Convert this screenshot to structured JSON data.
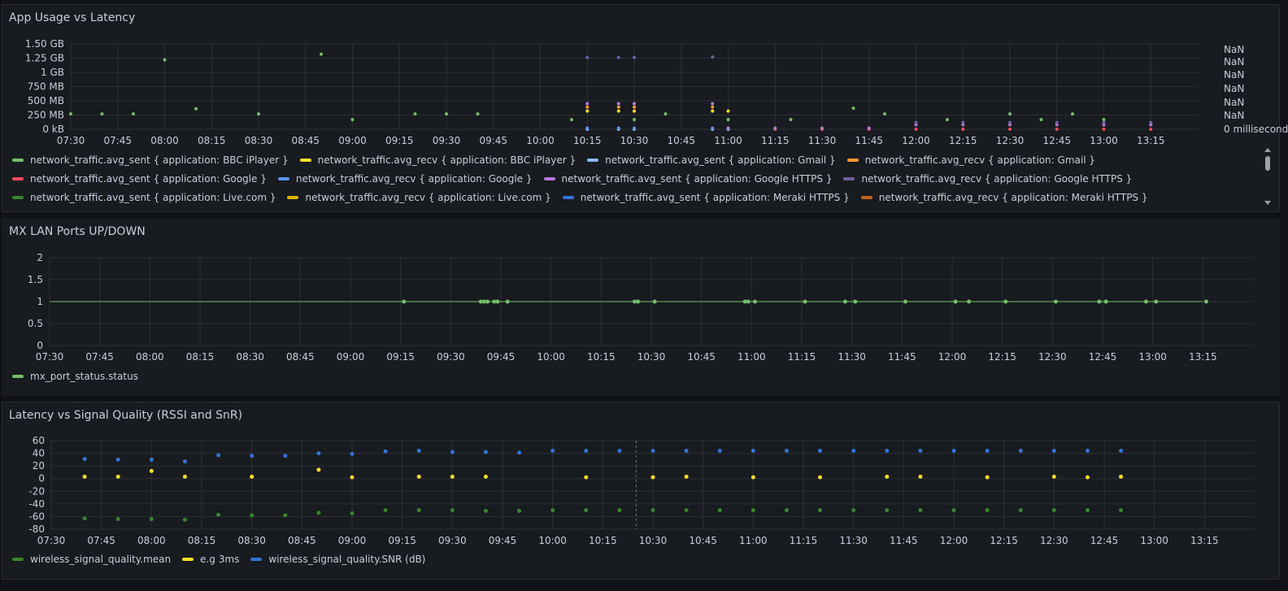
{
  "panels": [
    {
      "title": "App Usage vs Latency",
      "legend": [
        {
          "label": "network_traffic.avg_sent { application: BBC iPlayer }",
          "color": "#73bf69"
        },
        {
          "label": "network_traffic.avg_recv { application: BBC iPlayer }",
          "color": "#fade2a"
        },
        {
          "label": "network_traffic.avg_sent { application: Gmail }",
          "color": "#8ab8ff"
        },
        {
          "label": "network_traffic.avg_recv { application: Gmail }",
          "color": "#ff9830"
        },
        {
          "label": "network_traffic.avg_sent { application: Google }",
          "color": "#f2495c"
        },
        {
          "label": "network_traffic.avg_recv { application: Google }",
          "color": "#5794f2"
        },
        {
          "label": "network_traffic.avg_sent { application: Google HTTPS }",
          "color": "#b877d9"
        },
        {
          "label": "network_traffic.avg_recv { application: Google HTTPS }",
          "color": "#705da0"
        },
        {
          "label": "network_traffic.avg_sent { application: Live.com }",
          "color": "#37872d"
        },
        {
          "label": "network_traffic.avg_recv { application: Live.com }",
          "color": "#e0b400"
        },
        {
          "label": "network_traffic.avg_sent { application: Meraki HTTPS }",
          "color": "#3274d9"
        },
        {
          "label": "network_traffic.avg_recv { application: Meraki HTTPS }",
          "color": "#c4631b"
        }
      ]
    },
    {
      "title": "MX LAN Ports UP/DOWN",
      "legend": [
        {
          "label": "mx_port_status.status",
          "color": "#73bf69"
        }
      ]
    },
    {
      "title": "Latency vs Signal Quality (RSSI and SnR)",
      "legend": [
        {
          "label": "wireless_signal_quality.mean",
          "color": "#37872d"
        },
        {
          "label": "e.g 3ms",
          "color": "#fade2a"
        },
        {
          "label": "wireless_signal_quality.SNR (dB)",
          "color": "#3274d9"
        }
      ]
    }
  ],
  "chart_data": [
    {
      "type": "scatter",
      "title": "App Usage vs Latency",
      "x_tick_labels": [
        "07:30",
        "07:45",
        "08:00",
        "08:15",
        "08:30",
        "08:45",
        "09:00",
        "09:15",
        "09:30",
        "09:45",
        "10:00",
        "10:15",
        "10:30",
        "10:45",
        "11:00",
        "11:15",
        "11:30",
        "11:45",
        "12:00",
        "12:15",
        "12:30",
        "12:45",
        "13:00",
        "13:15"
      ],
      "y_tick_labels": [
        "1.50 GB",
        "1.25 GB",
        "1 GB",
        "750 MB",
        "500 MB",
        "250 MB",
        "0 kB"
      ],
      "y_ticks_mb": [
        1500,
        1250,
        1000,
        750,
        500,
        250,
        0
      ],
      "y2_tick_labels": [
        "NaN",
        "NaN",
        "NaN",
        "NaN",
        "NaN",
        "NaN",
        "0 milliseconds"
      ],
      "ylim_mb": [
        0,
        1500
      ],
      "xlim": [
        "07:30",
        "13:30"
      ],
      "grid": true,
      "series": [
        {
          "name": "network_traffic.avg_sent { application: BBC iPlayer }",
          "color": "#73bf69",
          "points": [
            [
              "07:30",
              270
            ],
            [
              "07:40",
              270
            ],
            [
              "07:50",
              270
            ],
            [
              "08:00",
              1220
            ],
            [
              "08:10",
              360
            ],
            [
              "08:30",
              270
            ],
            [
              "08:50",
              1320
            ],
            [
              "09:00",
              170
            ],
            [
              "09:20",
              270
            ],
            [
              "09:30",
              270
            ],
            [
              "09:40",
              270
            ],
            [
              "10:10",
              170
            ],
            [
              "10:30",
              170
            ],
            [
              "10:40",
              270
            ],
            [
              "11:00",
              170
            ],
            [
              "11:20",
              170
            ],
            [
              "11:40",
              370
            ],
            [
              "11:50",
              270
            ],
            [
              "12:10",
              170
            ],
            [
              "12:30",
              270
            ],
            [
              "12:40",
              170
            ],
            [
              "12:50",
              270
            ],
            [
              "13:00",
              170
            ]
          ]
        },
        {
          "name": "network_traffic.avg_recv { application: BBC iPlayer }",
          "color": "#fade2a",
          "points": [
            [
              "10:15",
              320
            ],
            [
              "10:25",
              320
            ],
            [
              "10:30",
              320
            ],
            [
              "10:55",
              320
            ],
            [
              "11:00",
              320
            ]
          ]
        },
        {
          "name": "network_traffic.avg_sent { application: Gmail }",
          "color": "#8ab8ff",
          "points": [
            [
              "10:15",
              0
            ],
            [
              "10:25",
              0
            ],
            [
              "10:30",
              0
            ],
            [
              "10:55",
              0
            ],
            [
              "11:00",
              0
            ]
          ]
        },
        {
          "name": "network_traffic.avg_recv { application: Gmail }",
          "color": "#ff9830",
          "points": [
            [
              "10:15",
              390
            ],
            [
              "10:25",
              390
            ],
            [
              "10:30",
              390
            ],
            [
              "10:55",
              390
            ]
          ]
        },
        {
          "name": "network_traffic.avg_sent { application: Google }",
          "color": "#f2495c",
          "points": [
            [
              "11:15",
              0
            ],
            [
              "11:30",
              0
            ],
            [
              "11:45",
              0
            ],
            [
              "12:00",
              0
            ],
            [
              "12:15",
              0
            ],
            [
              "12:30",
              0
            ],
            [
              "12:45",
              0
            ],
            [
              "13:00",
              0
            ],
            [
              "13:15",
              0
            ]
          ]
        },
        {
          "name": "network_traffic.avg_recv { application: Google }",
          "color": "#5794f2",
          "points": [
            [
              "10:15",
              20
            ],
            [
              "10:25",
              20
            ],
            [
              "10:30",
              20
            ],
            [
              "10:55",
              20
            ],
            [
              "11:00",
              20
            ]
          ]
        },
        {
          "name": "network_traffic.avg_sent { application: Google HTTPS }",
          "color": "#b877d9",
          "points": [
            [
              "10:15",
              450
            ],
            [
              "10:25",
              450
            ],
            [
              "10:30",
              450
            ],
            [
              "10:55",
              450
            ],
            [
              "11:00",
              20
            ],
            [
              "11:15",
              20
            ],
            [
              "11:30",
              20
            ],
            [
              "11:45",
              20
            ],
            [
              "12:00",
              80
            ],
            [
              "12:15",
              80
            ],
            [
              "12:30",
              80
            ],
            [
              "12:45",
              80
            ],
            [
              "13:00",
              80
            ],
            [
              "13:15",
              80
            ]
          ]
        },
        {
          "name": "network_traffic.avg_recv { application: Google HTTPS }",
          "color": "#705da0",
          "points": [
            [
              "10:15",
              1260
            ],
            [
              "10:25",
              1260
            ],
            [
              "10:30",
              1260
            ],
            [
              "10:55",
              1270
            ],
            [
              "12:00",
              120
            ],
            [
              "12:15",
              120
            ],
            [
              "12:30",
              120
            ],
            [
              "12:45",
              120
            ],
            [
              "13:00",
              120
            ],
            [
              "13:15",
              120
            ]
          ]
        }
      ]
    },
    {
      "type": "line",
      "title": "MX LAN Ports UP/DOWN",
      "x_tick_labels": [
        "07:30",
        "07:45",
        "08:00",
        "08:15",
        "08:30",
        "08:45",
        "09:00",
        "09:15",
        "09:30",
        "09:45",
        "10:00",
        "10:15",
        "10:30",
        "10:45",
        "11:00",
        "11:15",
        "11:30",
        "11:45",
        "12:00",
        "12:15",
        "12:30",
        "12:45",
        "13:00",
        "13:15"
      ],
      "y_ticks": [
        0,
        0.5,
        1,
        1.5,
        2
      ],
      "y_tick_labels": [
        "2",
        "1.5",
        "1",
        "0.5",
        "0"
      ],
      "ylim": [
        0,
        2
      ],
      "xlim": [
        "07:30",
        "13:30"
      ],
      "grid": true,
      "series": [
        {
          "name": "mx_port_status.status",
          "color": "#73bf69",
          "line": [
            [
              "07:30",
              1
            ],
            [
              "13:15",
              1
            ]
          ],
          "points": [
            [
              "09:16",
              1
            ],
            [
              "09:39",
              1
            ],
            [
              "09:40",
              1
            ],
            [
              "09:41",
              1
            ],
            [
              "09:43",
              1
            ],
            [
              "09:44",
              1
            ],
            [
              "09:47",
              1
            ],
            [
              "10:25",
              1
            ],
            [
              "10:26",
              1
            ],
            [
              "10:31",
              1
            ],
            [
              "10:58",
              1
            ],
            [
              "10:59",
              1
            ],
            [
              "11:01",
              1
            ],
            [
              "11:16",
              1
            ],
            [
              "11:28",
              1
            ],
            [
              "11:31",
              1
            ],
            [
              "11:46",
              1
            ],
            [
              "12:01",
              1
            ],
            [
              "12:05",
              1
            ],
            [
              "12:16",
              1
            ],
            [
              "12:31",
              1
            ],
            [
              "12:44",
              1
            ],
            [
              "12:46",
              1
            ],
            [
              "12:58",
              1
            ],
            [
              "13:01",
              1
            ],
            [
              "13:16",
              1
            ]
          ]
        }
      ]
    },
    {
      "type": "scatter",
      "title": "Latency vs Signal Quality (RSSI and SnR)",
      "x_tick_labels": [
        "07:30",
        "07:45",
        "08:00",
        "08:15",
        "08:30",
        "08:45",
        "09:00",
        "09:15",
        "09:30",
        "09:45",
        "10:00",
        "10:15",
        "10:30",
        "10:45",
        "11:00",
        "11:15",
        "11:30",
        "11:45",
        "12:00",
        "12:15",
        "12:30",
        "12:45",
        "13:00",
        "13:15"
      ],
      "y_ticks": [
        60,
        40,
        20,
        0,
        -20,
        -40,
        -60,
        -80
      ],
      "y_tick_labels": [
        "60",
        "40",
        "20",
        "0",
        "-20",
        "-40",
        "-60",
        "-80"
      ],
      "ylim": [
        -80,
        60
      ],
      "xlim": [
        "07:30",
        "13:30"
      ],
      "grid": true,
      "series": [
        {
          "name": "wireless_signal_quality.mean",
          "color": "#37872d",
          "points": [
            [
              "07:40",
              -63
            ],
            [
              "07:50",
              -64
            ],
            [
              "08:00",
              -64
            ],
            [
              "08:10",
              -65
            ],
            [
              "08:20",
              -57
            ],
            [
              "08:30",
              -58
            ],
            [
              "08:40",
              -58
            ],
            [
              "08:50",
              -54
            ],
            [
              "09:00",
              -55
            ],
            [
              "09:10",
              -50
            ],
            [
              "09:20",
              -50
            ],
            [
              "09:30",
              -50
            ],
            [
              "09:40",
              -51
            ],
            [
              "09:50",
              -51
            ],
            [
              "10:00",
              -50
            ],
            [
              "10:10",
              -50
            ],
            [
              "10:20",
              -50
            ],
            [
              "10:30",
              -50
            ],
            [
              "10:40",
              -50
            ],
            [
              "10:50",
              -50
            ],
            [
              "11:00",
              -50
            ],
            [
              "11:10",
              -50
            ],
            [
              "11:20",
              -50
            ],
            [
              "11:30",
              -50
            ],
            [
              "11:40",
              -50
            ],
            [
              "11:50",
              -50
            ],
            [
              "12:00",
              -50
            ],
            [
              "12:10",
              -50
            ],
            [
              "12:20",
              -50
            ],
            [
              "12:30",
              -50
            ],
            [
              "12:40",
              -50
            ],
            [
              "12:50",
              -50
            ]
          ]
        },
        {
          "name": "e.g 3ms",
          "color": "#fade2a",
          "points": [
            [
              "07:40",
              3
            ],
            [
              "07:50",
              3
            ],
            [
              "08:00",
              12
            ],
            [
              "08:10",
              3
            ],
            [
              "08:30",
              3
            ],
            [
              "08:50",
              14
            ],
            [
              "09:00",
              2
            ],
            [
              "09:20",
              3
            ],
            [
              "09:30",
              3
            ],
            [
              "09:40",
              3
            ],
            [
              "10:10",
              2
            ],
            [
              "10:30",
              2
            ],
            [
              "10:40",
              3
            ],
            [
              "11:00",
              2
            ],
            [
              "11:20",
              2
            ],
            [
              "11:40",
              3
            ],
            [
              "11:50",
              3
            ],
            [
              "12:10",
              2
            ],
            [
              "12:30",
              3
            ],
            [
              "12:40",
              2
            ],
            [
              "12:50",
              3
            ]
          ]
        },
        {
          "name": "wireless_signal_quality.SNR (dB)",
          "color": "#3274d9",
          "points": [
            [
              "07:40",
              31
            ],
            [
              "07:50",
              30
            ],
            [
              "08:00",
              30
            ],
            [
              "08:10",
              27
            ],
            [
              "08:20",
              37
            ],
            [
              "08:30",
              36
            ],
            [
              "08:40",
              36
            ],
            [
              "08:50",
              40
            ],
            [
              "09:00",
              39
            ],
            [
              "09:10",
              43
            ],
            [
              "09:20",
              44
            ],
            [
              "09:30",
              42
            ],
            [
              "09:40",
              42
            ],
            [
              "09:50",
              41
            ],
            [
              "10:00",
              44
            ],
            [
              "10:10",
              44
            ],
            [
              "10:20",
              44
            ],
            [
              "10:30",
              44
            ],
            [
              "10:40",
              44
            ],
            [
              "10:50",
              44
            ],
            [
              "11:00",
              44
            ],
            [
              "11:10",
              44
            ],
            [
              "11:20",
              44
            ],
            [
              "11:30",
              44
            ],
            [
              "11:40",
              44
            ],
            [
              "11:50",
              44
            ],
            [
              "12:00",
              44
            ],
            [
              "12:10",
              44
            ],
            [
              "12:20",
              44
            ],
            [
              "12:30",
              44
            ],
            [
              "12:40",
              44
            ],
            [
              "12:50",
              44
            ]
          ]
        }
      ]
    }
  ]
}
